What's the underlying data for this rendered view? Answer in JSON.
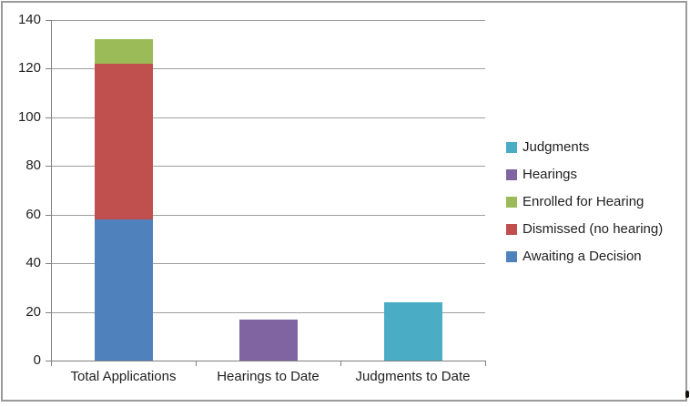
{
  "window": {
    "background": "#FFFFFF",
    "border_color": "#9A9A9A"
  },
  "chart_data": {
    "type": "bar",
    "stacked": true,
    "title": "",
    "xlabel": "",
    "ylabel": "",
    "categories": [
      "Total Applications",
      "Hearings to Date",
      "Judgments to Date"
    ],
    "series": [
      {
        "name": "Awaiting a Decision",
        "color": "#4F81BD",
        "values": [
          58,
          0,
          0
        ]
      },
      {
        "name": "Dismissed (no hearing)",
        "color": "#C0504D",
        "values": [
          64,
          0,
          0
        ]
      },
      {
        "name": "Enrolled for Hearing",
        "color": "#9BBB59",
        "values": [
          10,
          0,
          0
        ]
      },
      {
        "name": "Hearings",
        "color": "#8064A2",
        "values": [
          0,
          17,
          0
        ]
      },
      {
        "name": "Judgments",
        "color": "#4BACC6",
        "values": [
          0,
          0,
          24
        ]
      }
    ],
    "stack_totals": [
      132,
      17,
      24
    ],
    "ylim": [
      0,
      140
    ],
    "yticks": [
      0,
      20,
      40,
      60,
      80,
      100,
      120,
      140
    ],
    "grid": true,
    "legend_position": "right",
    "legend": [
      "Judgments",
      "Hearings",
      "Enrolled for Hearing",
      "Dismissed (no hearing)",
      "Awaiting a Decision"
    ],
    "colors": {
      "axis": "#808080",
      "gridline": "#9E9E9E",
      "text": "#1F1F1F"
    }
  }
}
